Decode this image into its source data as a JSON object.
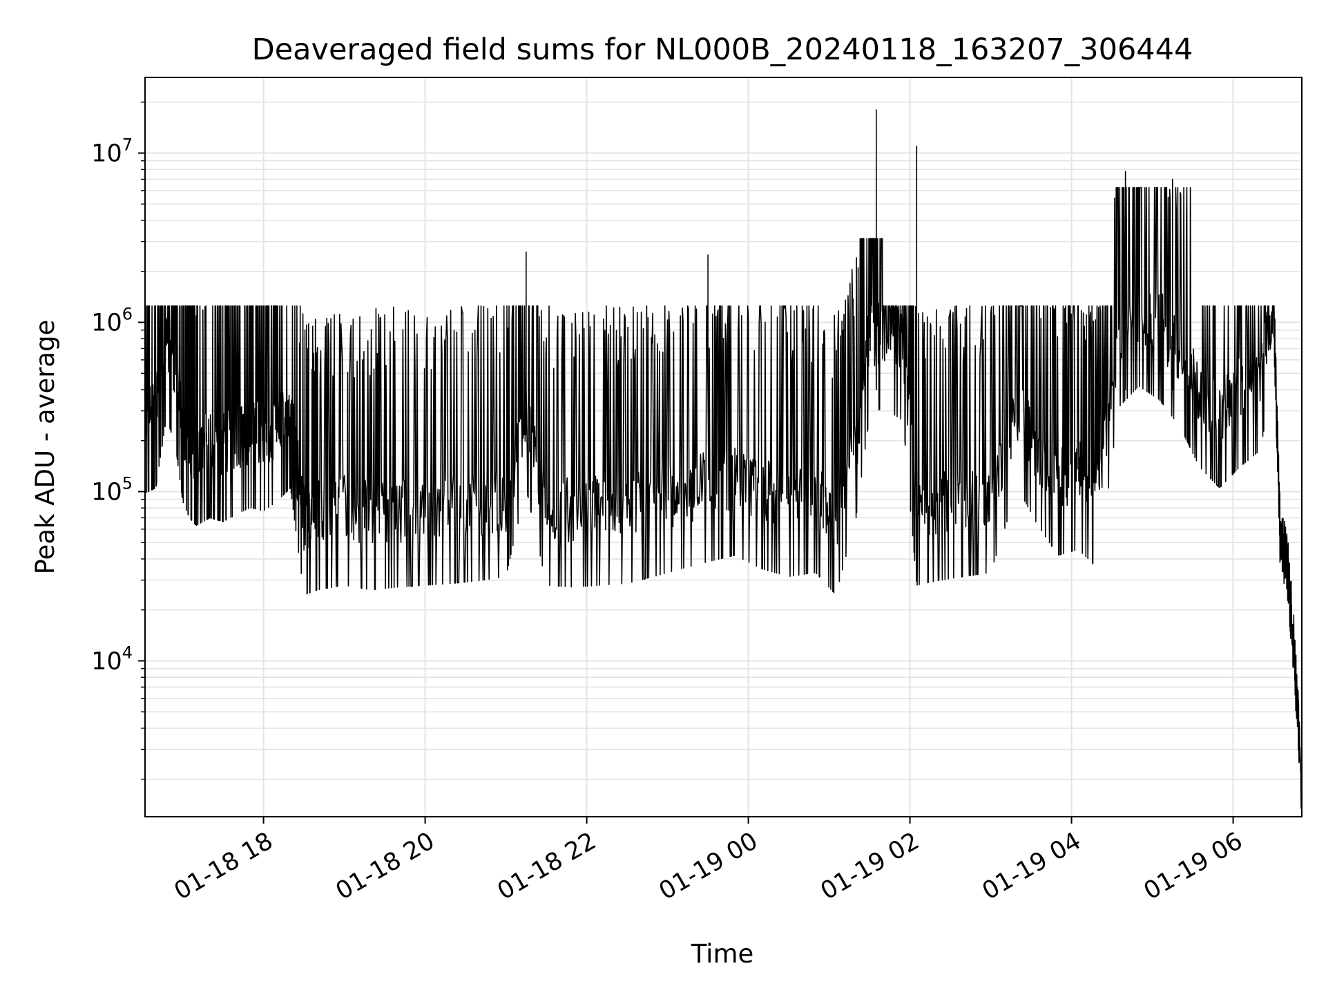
{
  "chart_data": {
    "type": "line",
    "title": "Deaveraged field sums for NL000B_20240118_163207_306444",
    "xlabel": "Time",
    "ylabel": "Peak ADU - average",
    "y_scale": "log",
    "ylim": [
      1200,
      28000000
    ],
    "xlim": [
      "2024-01-18 16:32",
      "2024-01-19 06:51"
    ],
    "grid": true,
    "legend": "none",
    "line_color": "#000000",
    "x_ticks": [
      {
        "time": "2024-01-18 18:00",
        "label": "01-18 18"
      },
      {
        "time": "2024-01-18 20:00",
        "label": "01-18 20"
      },
      {
        "time": "2024-01-18 22:00",
        "label": "01-18 22"
      },
      {
        "time": "2024-01-19 00:00",
        "label": "01-19 00"
      },
      {
        "time": "2024-01-19 02:00",
        "label": "01-19 02"
      },
      {
        "time": "2024-01-19 04:00",
        "label": "01-19 04"
      },
      {
        "time": "2024-01-19 06:00",
        "label": "01-19 06"
      }
    ],
    "y_ticks": [
      {
        "value": 10000,
        "base": "10",
        "exp": "4"
      },
      {
        "value": 100000,
        "base": "10",
        "exp": "5"
      },
      {
        "value": 1000000,
        "base": "10",
        "exp": "6"
      },
      {
        "value": 10000000,
        "base": "10",
        "exp": "7"
      }
    ],
    "series": [
      {
        "x": [
          "2024-01-18 16:32",
          "2024-01-18 16:40",
          "2024-01-18 16:48",
          "2024-01-18 16:55",
          "2024-01-18 17:00",
          "2024-01-18 17:05",
          "2024-01-18 17:10",
          "2024-01-18 17:20",
          "2024-01-18 17:30",
          "2024-01-18 17:40",
          "2024-01-18 17:50",
          "2024-01-18 18:00",
          "2024-01-18 18:10",
          "2024-01-18 18:20",
          "2024-01-18 18:30",
          "2024-01-18 18:40",
          "2024-01-18 19:00",
          "2024-01-18 19:20",
          "2024-01-18 19:40",
          "2024-01-18 20:00",
          "2024-01-18 20:20",
          "2024-01-18 20:40",
          "2024-01-18 21:00",
          "2024-01-18 21:15",
          "2024-01-18 21:30",
          "2024-01-18 21:50",
          "2024-01-18 22:10",
          "2024-01-18 22:30",
          "2024-01-18 22:50",
          "2024-01-18 23:10",
          "2024-01-18 23:30",
          "2024-01-18 23:50",
          "2024-01-19 00:10",
          "2024-01-19 00:30",
          "2024-01-19 00:50",
          "2024-01-19 01:05",
          "2024-01-19 01:20",
          "2024-01-19 01:30",
          "2024-01-19 01:40",
          "2024-01-19 01:55",
          "2024-01-19 02:05",
          "2024-01-19 02:20",
          "2024-01-19 02:40",
          "2024-01-19 03:00",
          "2024-01-19 03:20",
          "2024-01-19 03:35",
          "2024-01-19 03:50",
          "2024-01-19 04:05",
          "2024-01-19 04:20",
          "2024-01-19 04:35",
          "2024-01-19 04:50",
          "2024-01-19 05:05",
          "2024-01-19 05:20",
          "2024-01-19 05:35",
          "2024-01-19 05:50",
          "2024-01-19 06:05",
          "2024-01-19 06:20",
          "2024-01-19 06:30",
          "2024-01-19 06:35",
          "2024-01-19 06:40",
          "2024-01-19 06:45",
          "2024-01-19 06:51"
        ],
        "y": [
          280000,
          300000,
          800000,
          500000,
          250000,
          200000,
          180000,
          200000,
          190000,
          210000,
          230000,
          220000,
          250000,
          300000,
          70000,
          75000,
          80000,
          75000,
          78000,
          80000,
          82000,
          85000,
          90000,
          300000,
          80000,
          78000,
          80000,
          82000,
          90000,
          100000,
          110000,
          120000,
          100000,
          90000,
          95000,
          70000,
          200000,
          800000,
          900000,
          750000,
          80000,
          85000,
          90000,
          95000,
          300000,
          180000,
          120000,
          130000,
          100000,
          900000,
          1200000,
          1000000,
          700000,
          400000,
          300000,
          400000,
          500000,
          1300000,
          50000,
          40000,
          12000,
          1800
        ]
      }
    ]
  }
}
